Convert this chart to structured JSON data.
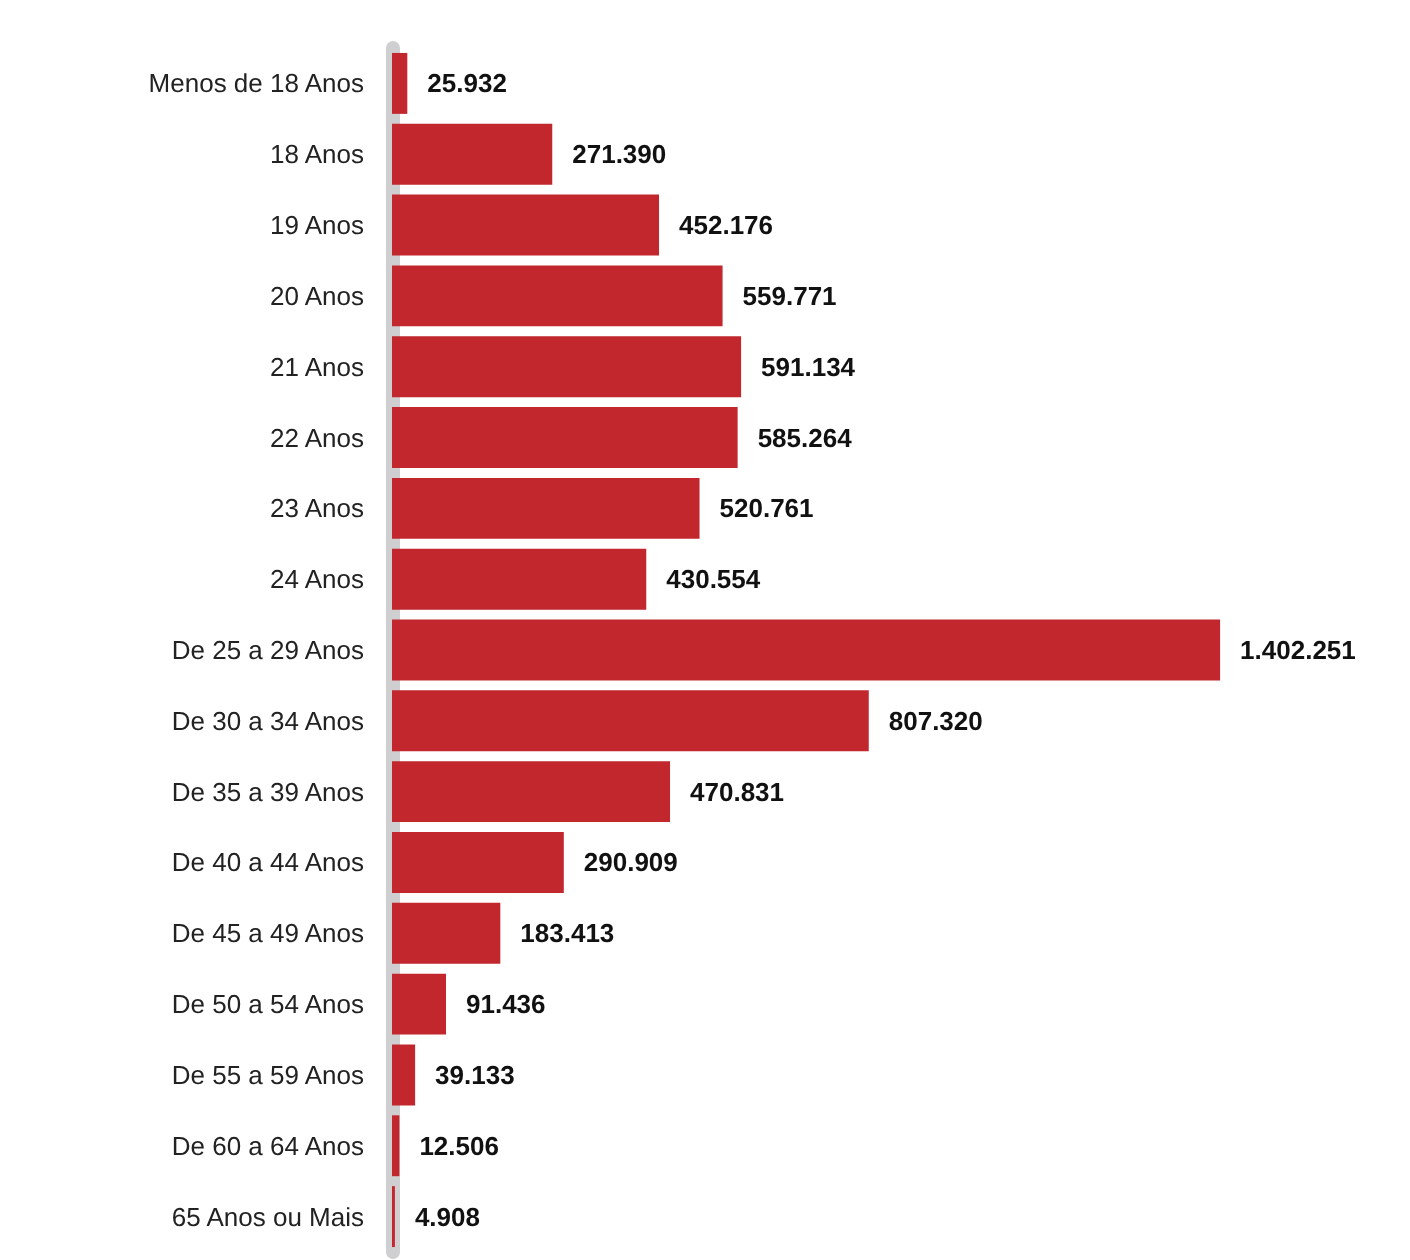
{
  "chart_data": {
    "type": "bar",
    "orientation": "horizontal",
    "categories": [
      "Menos de 18 Anos",
      "18 Anos",
      "19 Anos",
      "20 Anos",
      "21 Anos",
      "22 Anos",
      "23 Anos",
      "24 Anos",
      "De 25 a 29 Anos",
      "De 30 a 34 Anos",
      "De 35 a 39 Anos",
      "De 40 a 44 Anos",
      "De 45 a 49 Anos",
      "De 50 a 54 Anos",
      "De 55 a 59 Anos",
      "De 60 a 64 Anos",
      "65 Anos ou Mais"
    ],
    "values": [
      25932,
      271390,
      452176,
      559771,
      591134,
      585264,
      520761,
      430554,
      1402251,
      807320,
      470831,
      290909,
      183413,
      91436,
      39133,
      12506,
      4908
    ],
    "value_labels": [
      "25.932",
      "271.390",
      "452.176",
      "559.771",
      "591.134",
      "585.264",
      "520.761",
      "430.554",
      "1.402.251",
      "807.320",
      "470.831",
      "290.909",
      "183.413",
      "91.436",
      "39.133",
      "12.506",
      "4.908"
    ],
    "color": "#c1272d"
  }
}
